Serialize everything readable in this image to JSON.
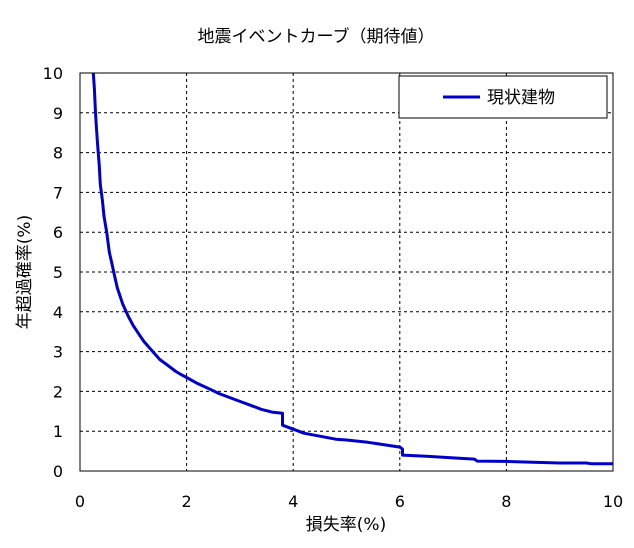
{
  "chart_data": {
    "type": "line",
    "title": "地震イベントカーブ（期待値）",
    "xlabel": "損失率(%)",
    "ylabel": "年超過確率(%)",
    "xlim": [
      0,
      10
    ],
    "ylim": [
      0,
      10
    ],
    "x_ticks": [
      "0",
      "2",
      "4",
      "6",
      "8",
      "10"
    ],
    "y_ticks": [
      "0",
      "1",
      "2",
      "3",
      "4",
      "5",
      "6",
      "7",
      "8",
      "9",
      "10"
    ],
    "grid": true,
    "legend_position": "top-right",
    "series": [
      {
        "name": "現状建物",
        "color": "#0000cc",
        "x": [
          0.25,
          0.27,
          0.29,
          0.31,
          0.33,
          0.36,
          0.38,
          0.42,
          0.45,
          0.5,
          0.55,
          0.6,
          0.65,
          0.7,
          0.75,
          0.8,
          0.9,
          1.0,
          1.1,
          1.2,
          1.3,
          1.4,
          1.5,
          1.6,
          1.7,
          1.8,
          1.9,
          2.0,
          2.2,
          2.4,
          2.6,
          2.8,
          3.0,
          3.2,
          3.4,
          3.6,
          3.8,
          3.8,
          4.0,
          4.2,
          4.4,
          4.6,
          4.8,
          5.0,
          5.2,
          5.4,
          5.6,
          5.8,
          6.0,
          6.05,
          6.05,
          6.5,
          7.0,
          7.4,
          7.45,
          8.0,
          8.5,
          9.0,
          9.5,
          9.6,
          10.0
        ],
        "y": [
          10.0,
          9.6,
          9.0,
          8.6,
          8.2,
          7.7,
          7.2,
          6.8,
          6.4,
          6.0,
          5.5,
          5.2,
          4.9,
          4.6,
          4.4,
          4.2,
          3.9,
          3.65,
          3.45,
          3.25,
          3.1,
          2.95,
          2.8,
          2.7,
          2.6,
          2.5,
          2.42,
          2.35,
          2.2,
          2.08,
          1.95,
          1.85,
          1.75,
          1.65,
          1.55,
          1.48,
          1.45,
          1.15,
          1.05,
          0.95,
          0.9,
          0.85,
          0.8,
          0.78,
          0.75,
          0.72,
          0.68,
          0.64,
          0.6,
          0.55,
          0.4,
          0.37,
          0.33,
          0.3,
          0.25,
          0.24,
          0.22,
          0.2,
          0.2,
          0.18,
          0.18
        ]
      }
    ]
  }
}
